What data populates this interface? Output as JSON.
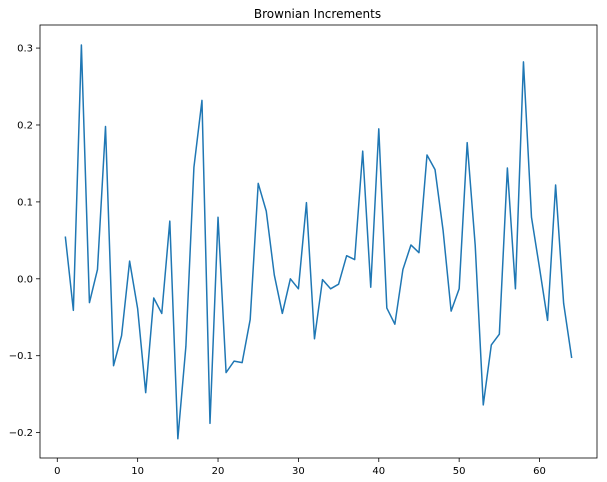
{
  "chart_data": {
    "type": "line",
    "title": "Brownian Increments",
    "xlabel": "",
    "ylabel": "",
    "xlim": [
      -2.15,
      67.15
    ],
    "ylim": [
      -0.233,
      0.33
    ],
    "xticks": [
      0,
      10,
      20,
      30,
      40,
      50,
      60
    ],
    "yticks": [
      -0.2,
      -0.1,
      0.0,
      0.1,
      0.2,
      0.3
    ],
    "xtick_labels": [
      "0",
      "10",
      "20",
      "30",
      "40",
      "50",
      "60"
    ],
    "ytick_labels": [
      "−0.2",
      "−0.1",
      "0.0",
      "0.1",
      "0.2",
      "0.3"
    ],
    "grid": false,
    "line_color": "#1f77b4",
    "x": [
      1,
      2,
      3,
      4,
      5,
      6,
      7,
      8,
      9,
      10,
      11,
      12,
      13,
      14,
      15,
      16,
      17,
      18,
      19,
      20,
      21,
      22,
      23,
      24,
      25,
      26,
      27,
      28,
      29,
      30,
      31,
      32,
      33,
      34,
      35,
      36,
      37,
      38,
      39,
      40,
      41,
      42,
      43,
      44,
      45,
      46,
      47,
      48,
      49,
      50,
      51,
      52,
      53,
      54,
      55,
      56,
      57,
      58,
      59,
      60,
      61,
      62,
      63,
      64
    ],
    "y": [
      0.055,
      -0.041,
      0.304,
      -0.031,
      0.012,
      0.198,
      -0.113,
      -0.074,
      0.023,
      -0.039,
      -0.148,
      -0.025,
      -0.045,
      0.075,
      -0.208,
      -0.088,
      0.145,
      0.232,
      -0.188,
      0.08,
      -0.122,
      -0.107,
      -0.109,
      -0.053,
      0.124,
      0.088,
      0.005,
      -0.045,
      0.0,
      -0.013,
      0.099,
      -0.078,
      -0.001,
      -0.013,
      -0.007,
      0.03,
      0.025,
      0.166,
      -0.011,
      0.195,
      -0.038,
      -0.059,
      0.012,
      0.044,
      0.034,
      0.161,
      0.142,
      0.063,
      -0.042,
      -0.013,
      0.177,
      0.043,
      -0.164,
      -0.086,
      -0.072,
      0.144,
      -0.013,
      0.282,
      0.08,
      0.014,
      -0.054,
      0.122,
      -0.032,
      -0.103
    ]
  }
}
